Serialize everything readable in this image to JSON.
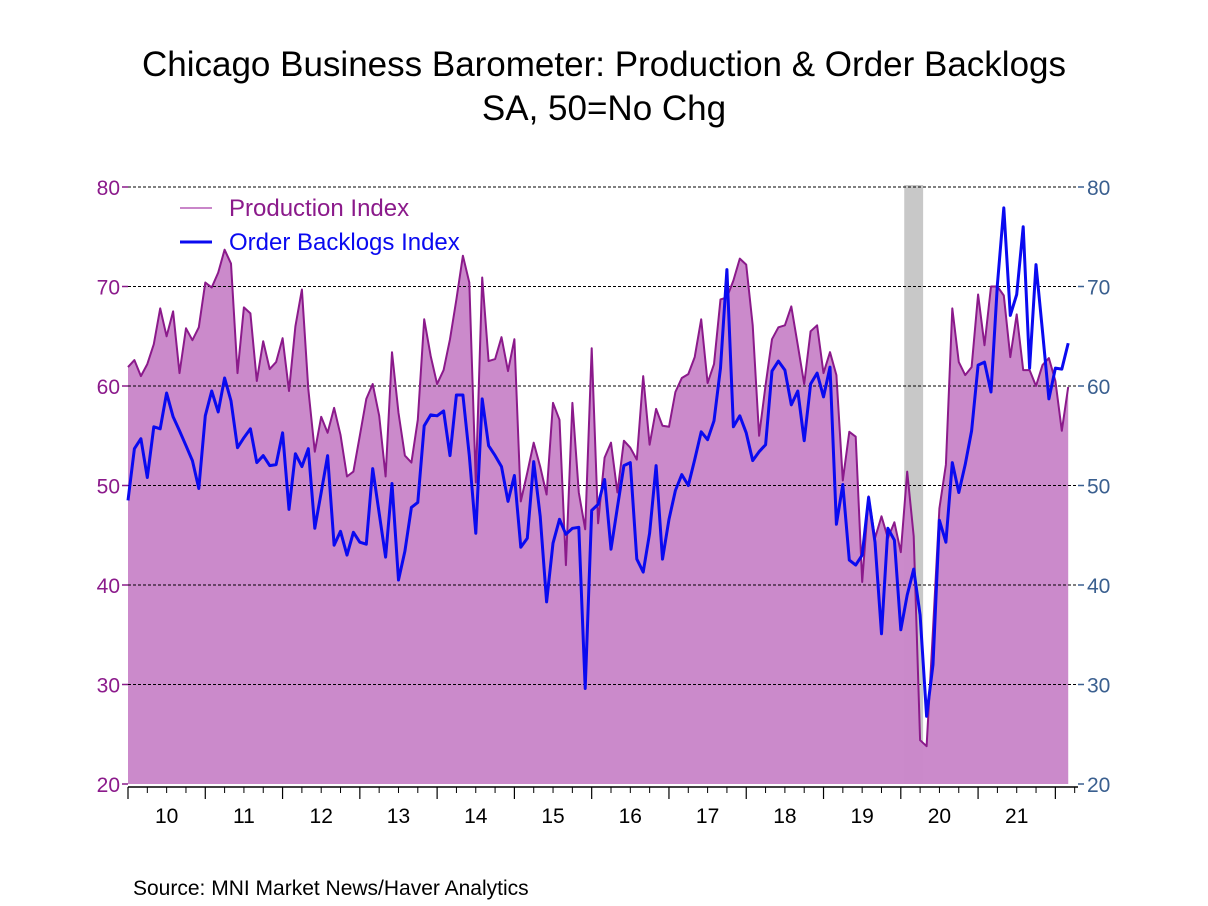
{
  "chart_data": {
    "type": "area",
    "title": "Chicago Business Barometer: Production & Order Backlogs",
    "subtitle": "SA, 50=No Chg",
    "source": "Source:  MNI Market News/Haver Analytics",
    "xlabel": "",
    "ylabel": "",
    "ylim": [
      20,
      80
    ],
    "yticks": [
      "20",
      "30",
      "40",
      "50",
      "60",
      "70",
      "80"
    ],
    "xticklabels": [
      "10",
      "11",
      "12",
      "13",
      "14",
      "15",
      "16",
      "17",
      "18",
      "19",
      "20",
      "21"
    ],
    "grid": true,
    "legend_position": "top-left",
    "recession_shading": {
      "start": "2020-02",
      "end": "2020-04",
      "color": "#C8C8C8"
    },
    "x": [
      "2010-01",
      "2010-02",
      "2010-03",
      "2010-04",
      "2010-05",
      "2010-06",
      "2010-07",
      "2010-08",
      "2010-09",
      "2010-10",
      "2010-11",
      "2010-12",
      "2011-01",
      "2011-02",
      "2011-03",
      "2011-04",
      "2011-05",
      "2011-06",
      "2011-07",
      "2011-08",
      "2011-09",
      "2011-10",
      "2011-11",
      "2011-12",
      "2012-01",
      "2012-02",
      "2012-03",
      "2012-04",
      "2012-05",
      "2012-06",
      "2012-07",
      "2012-08",
      "2012-09",
      "2012-10",
      "2012-11",
      "2012-12",
      "2013-01",
      "2013-02",
      "2013-03",
      "2013-04",
      "2013-05",
      "2013-06",
      "2013-07",
      "2013-08",
      "2013-09",
      "2013-10",
      "2013-11",
      "2013-12",
      "2014-01",
      "2014-02",
      "2014-03",
      "2014-04",
      "2014-05",
      "2014-06",
      "2014-07",
      "2014-08",
      "2014-09",
      "2014-10",
      "2014-11",
      "2014-12",
      "2015-01",
      "2015-02",
      "2015-03",
      "2015-04",
      "2015-05",
      "2015-06",
      "2015-07",
      "2015-08",
      "2015-09",
      "2015-10",
      "2015-11",
      "2015-12",
      "2016-01",
      "2016-02",
      "2016-03",
      "2016-04",
      "2016-05",
      "2016-06",
      "2016-07",
      "2016-08",
      "2016-09",
      "2016-10",
      "2016-11",
      "2016-12",
      "2017-01",
      "2017-02",
      "2017-03",
      "2017-04",
      "2017-05",
      "2017-06",
      "2017-07",
      "2017-08",
      "2017-09",
      "2017-10",
      "2017-11",
      "2017-12",
      "2018-01",
      "2018-02",
      "2018-03",
      "2018-04",
      "2018-05",
      "2018-06",
      "2018-07",
      "2018-08",
      "2018-09",
      "2018-10",
      "2018-11",
      "2018-12",
      "2019-01",
      "2019-02",
      "2019-03",
      "2019-04",
      "2019-05",
      "2019-06",
      "2019-07",
      "2019-08",
      "2019-09",
      "2019-10",
      "2019-11",
      "2019-12",
      "2020-01",
      "2020-02",
      "2020-03",
      "2020-04",
      "2020-05",
      "2020-06",
      "2020-07",
      "2020-08",
      "2020-09",
      "2020-10",
      "2020-11",
      "2020-12",
      "2021-01",
      "2021-02",
      "2021-03",
      "2021-04",
      "2021-05",
      "2021-06",
      "2021-07",
      "2021-08",
      "2021-09",
      "2021-10",
      "2021-11",
      "2021-12",
      "2022-01",
      "2022-02",
      "2022-03"
    ],
    "series": [
      {
        "name": "Production Index",
        "style": "area",
        "color": "#8B1A8B",
        "fill": "#C986C9",
        "values": [
          61.9,
          62.6,
          61.0,
          62.2,
          64.2,
          67.8,
          65.0,
          67.5,
          61.3,
          65.8,
          64.6,
          65.9,
          70.4,
          69.9,
          71.4,
          73.7,
          72.3,
          61.3,
          67.9,
          67.3,
          60.5,
          64.5,
          61.7,
          62.4,
          64.8,
          59.5,
          66.0,
          69.7,
          59.7,
          53.4,
          56.9,
          55.3,
          57.8,
          55.1,
          50.9,
          51.4,
          55.0,
          58.7,
          60.2,
          57.0,
          50.9,
          63.4,
          57.3,
          53.0,
          52.3,
          56.6,
          66.7,
          63.0,
          60.2,
          61.6,
          64.7,
          68.7,
          73.1,
          70.4,
          50.3,
          70.9,
          62.5,
          62.7,
          64.9,
          61.5,
          64.7,
          48.4,
          51.3,
          54.3,
          51.9,
          49.1,
          58.3,
          56.6,
          42.0,
          58.3,
          49.3,
          45.6,
          63.8,
          46.2,
          52.8,
          54.3,
          49.3,
          54.5,
          53.8,
          52.6,
          61.0,
          54.1,
          57.7,
          56.0,
          55.9,
          59.4,
          60.8,
          61.2,
          62.9,
          66.7,
          60.3,
          62.2,
          68.7,
          68.9,
          70.6,
          72.8,
          72.2,
          66.1,
          55.0,
          60.1,
          64.7,
          65.9,
          66.1,
          68.0,
          64.1,
          60.2,
          65.5,
          66.1,
          61.3,
          63.4,
          61.1,
          50.5,
          55.4,
          54.9,
          40.3,
          48.9,
          44.7,
          46.9,
          44.7,
          46.3,
          43.3,
          51.4,
          44.9,
          24.4,
          23.8,
          35.5,
          47.7,
          52.1,
          67.8,
          62.4,
          61.1,
          61.9,
          69.2,
          64.1,
          70.0,
          70.0,
          69.1,
          62.9,
          67.2,
          61.6,
          61.6,
          60.0,
          62.1,
          62.8,
          60.5,
          55.5,
          59.9
        ]
      },
      {
        "name": "Order Backlogs Index",
        "style": "line",
        "color": "#0A0AF0",
        "values": [
          48.5,
          53.7,
          54.7,
          50.8,
          55.9,
          55.7,
          59.3,
          56.9,
          55.5,
          54.0,
          52.5,
          49.7,
          57.0,
          59.5,
          57.4,
          60.8,
          58.5,
          53.8,
          54.8,
          55.7,
          52.3,
          53.0,
          52.0,
          52.1,
          55.3,
          47.6,
          53.2,
          51.9,
          53.7,
          45.7,
          49.3,
          53.0,
          44.0,
          45.4,
          43.0,
          45.3,
          44.3,
          44.1,
          51.7,
          47.2,
          42.8,
          50.2,
          40.5,
          43.4,
          47.8,
          48.3,
          56.0,
          57.1,
          57.0,
          57.5,
          53.0,
          59.1,
          59.1,
          53.0,
          45.2,
          58.7,
          54.0,
          53.0,
          51.9,
          48.4,
          51.0,
          43.8,
          44.7,
          52.4,
          46.9,
          38.3,
          44.2,
          46.6,
          45.1,
          45.7,
          45.8,
          29.6,
          47.5,
          48.1,
          50.6,
          43.6,
          47.8,
          52.0,
          52.3,
          42.6,
          41.3,
          45.2,
          52.0,
          42.6,
          46.6,
          49.5,
          51.1,
          50.0,
          52.6,
          55.4,
          54.6,
          56.5,
          61.8,
          71.7,
          55.9,
          57.0,
          55.3,
          52.5,
          53.4,
          54.1,
          61.5,
          62.5,
          61.6,
          58.1,
          59.5,
          54.5,
          60.2,
          61.3,
          58.9,
          61.9,
          46.1,
          50.1,
          42.5,
          42.0,
          43.0,
          48.8,
          44.3,
          35.1,
          45.7,
          44.5,
          35.5,
          39.0,
          41.6,
          37.0,
          26.8,
          32.0,
          46.5,
          44.3,
          52.3,
          49.3,
          52.1,
          55.5,
          62.1,
          62.4,
          59.4,
          70.2,
          77.9,
          67.1,
          69.2,
          76.0,
          61.8,
          72.2,
          65.5,
          58.7,
          61.8,
          61.7,
          64.3
        ]
      }
    ],
    "left_axis_color": "#8B1A8B",
    "right_axis_color": "#3A5F8F"
  }
}
